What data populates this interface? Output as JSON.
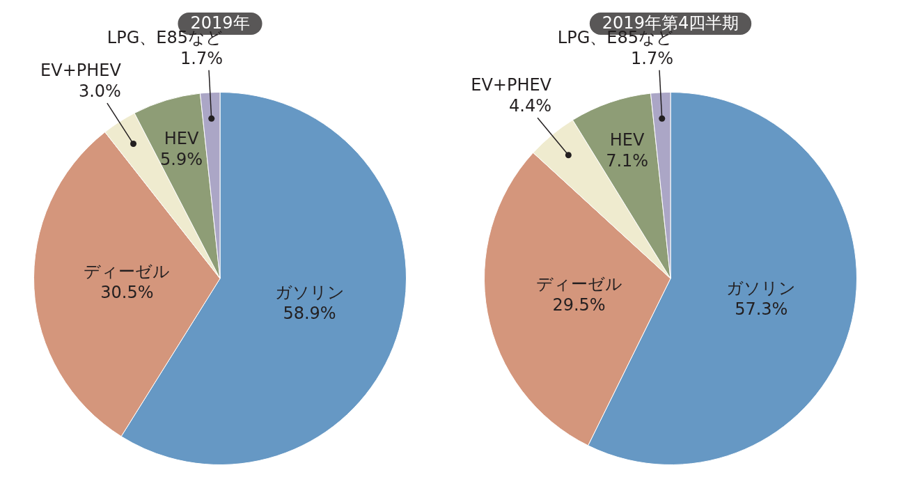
{
  "chart_data": [
    {
      "type": "pie",
      "title": "2019年",
      "categories": [
        "ガソリン",
        "ディーゼル",
        "EV+PHEV",
        "HEV",
        "LPG、E85など"
      ],
      "values": [
        58.9,
        30.5,
        3.0,
        5.9,
        1.7
      ],
      "value_labels": [
        "58.9%",
        "30.5%",
        "3.0%",
        "5.9%",
        "1.7%"
      ],
      "colors": [
        "#6698c4",
        "#d4967c",
        "#efebcf",
        "#8e9d76",
        "#aba6c6"
      ],
      "data_labels": true
    },
    {
      "type": "pie",
      "title": "2019年第4四半期",
      "categories": [
        "ガソリン",
        "ディーゼル",
        "EV+PHEV",
        "HEV",
        "LPG、E85など"
      ],
      "values": [
        57.3,
        29.5,
        4.4,
        7.1,
        1.7
      ],
      "value_labels": [
        "57.3%",
        "29.5%",
        "4.4%",
        "7.1%",
        "1.7%"
      ],
      "colors": [
        "#6698c4",
        "#d4967c",
        "#efebcf",
        "#8e9d76",
        "#aba6c6"
      ],
      "data_labels": true
    }
  ]
}
